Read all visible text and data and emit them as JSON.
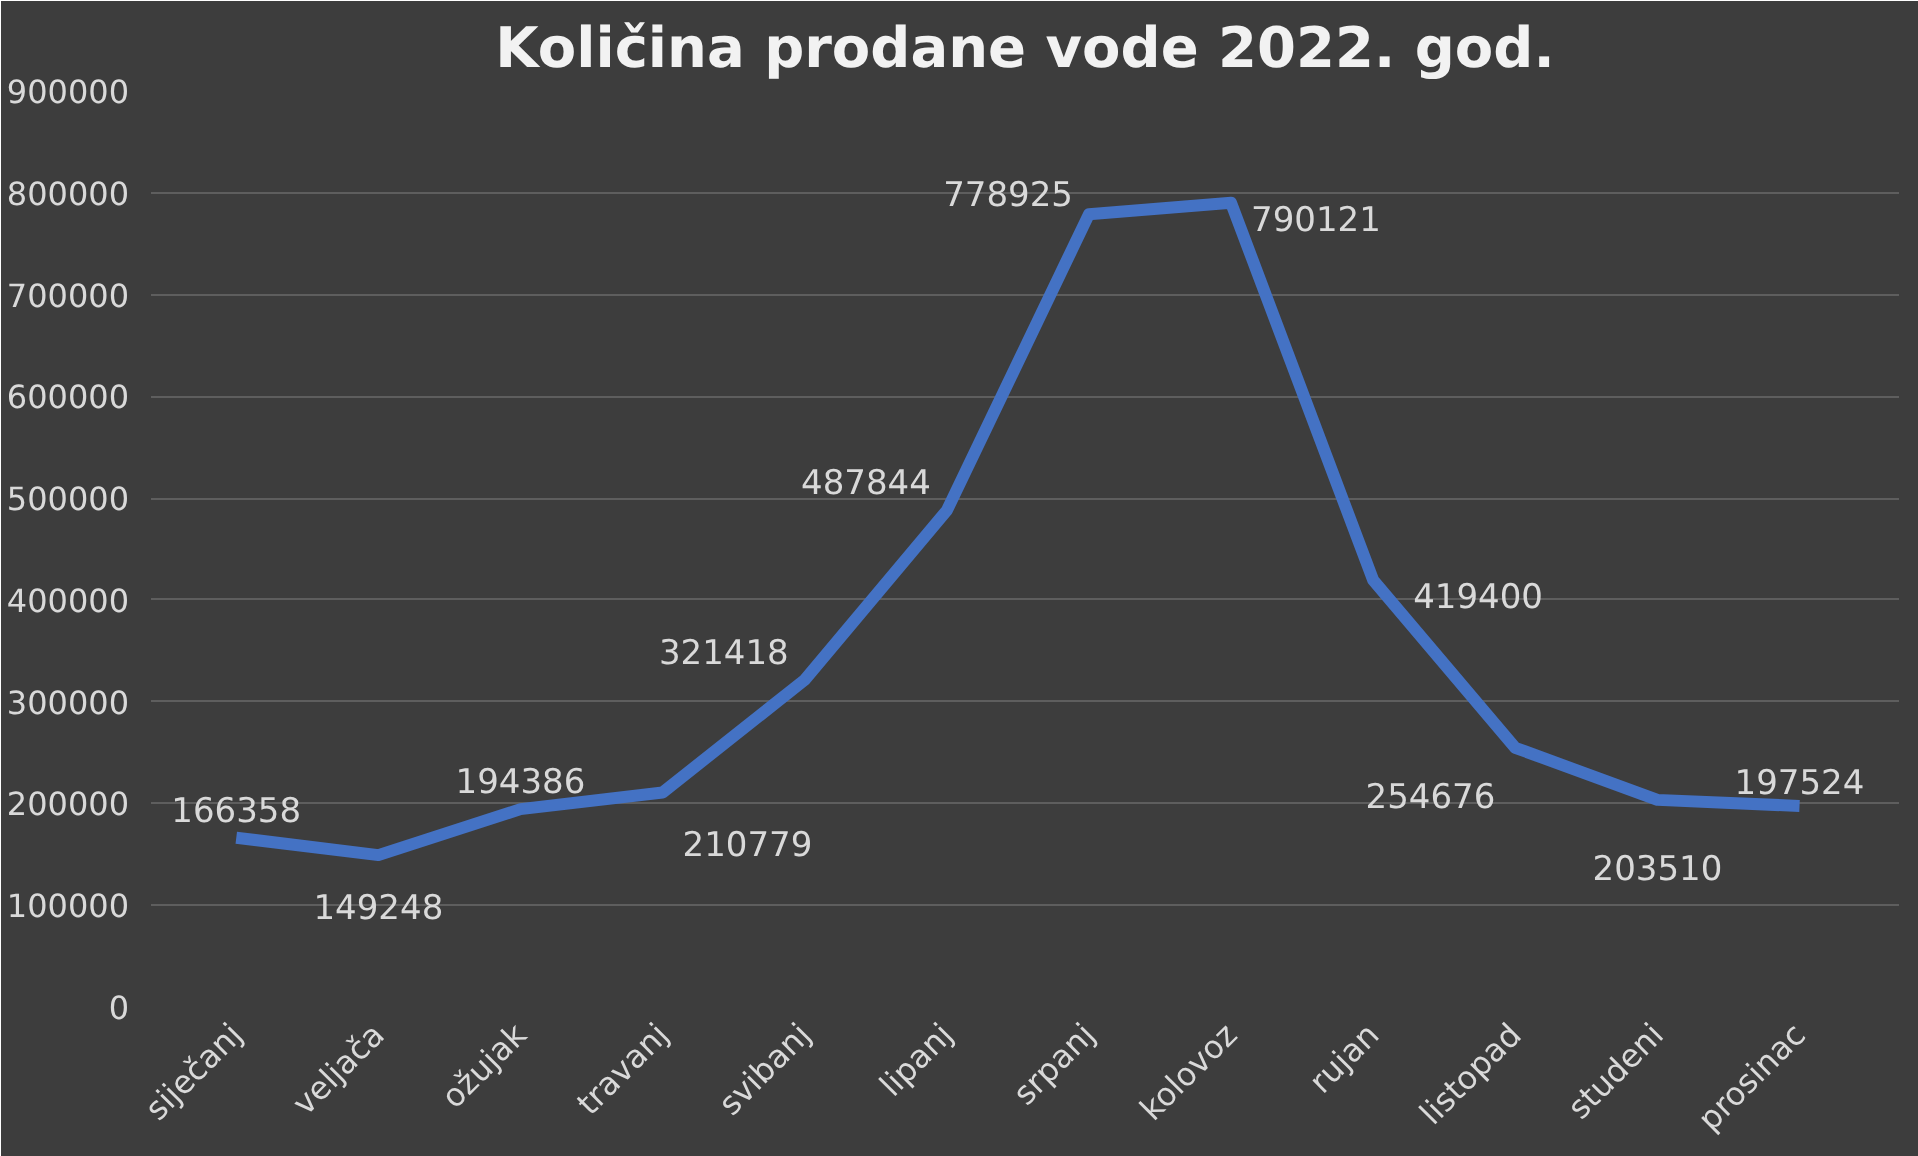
{
  "chart_data": {
    "type": "line",
    "title": "Količina prodane vode 2022. god.",
    "categories": [
      "siječanj",
      "veljača",
      "ožujak",
      "travanj",
      "svibanj",
      "lipanj",
      "srpanj",
      "kolovoz",
      "rujan",
      "listopad",
      "studeni",
      "prosinac"
    ],
    "series": [
      {
        "color": "#4472c4",
        "values": [
          166358,
          149248,
          194386,
          210779,
          321418,
          487844,
          778925,
          790121,
          419400,
          254676,
          203510,
          197524
        ]
      }
    ],
    "ylim": [
      0,
      900000
    ],
    "yticks": [
      0,
      100000,
      200000,
      300000,
      400000,
      500000,
      600000,
      700000,
      800000,
      900000
    ],
    "grid": "y",
    "data_labels": true,
    "marker": "none",
    "line_style": "solid"
  }
}
